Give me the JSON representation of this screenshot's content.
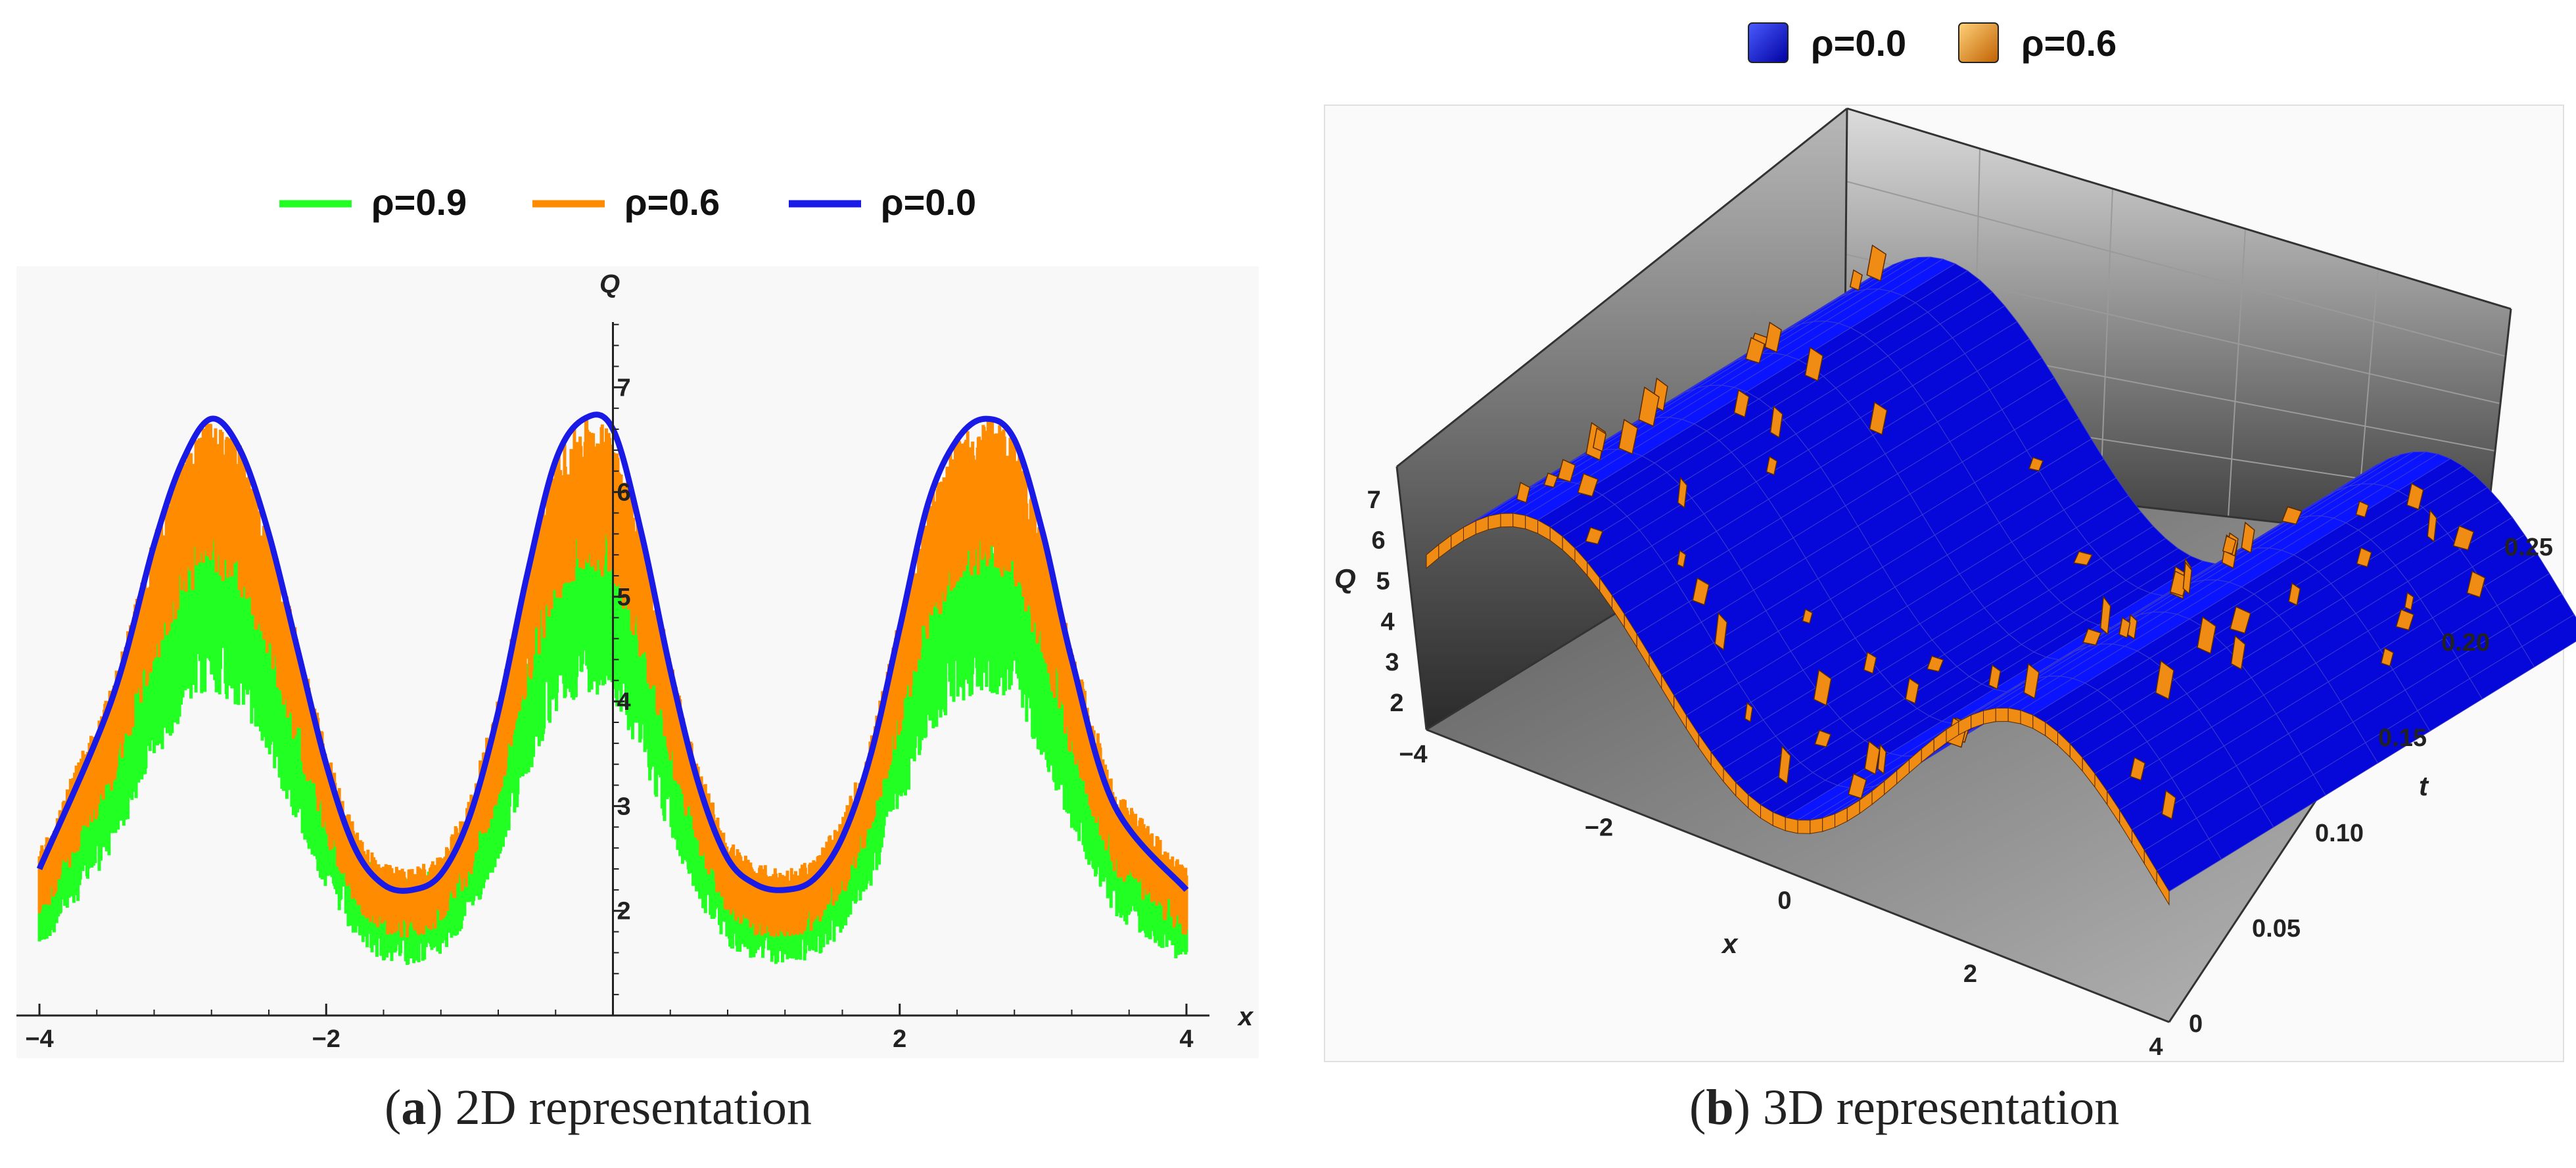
{
  "chart_data": [
    {
      "type": "line",
      "panel": "a",
      "caption_label": "a",
      "caption_text": "2D representation",
      "xlabel": "x",
      "ylabel": "Q",
      "xlim": [
        -4,
        4
      ],
      "ylim": [
        1.0,
        8.0
      ],
      "xticks": [
        -4,
        -2,
        0,
        2,
        4
      ],
      "xtick_labels": [
        "−4",
        "−2",
        "",
        "2",
        "4"
      ],
      "yticks": [
        2,
        3,
        4,
        5,
        6,
        7
      ],
      "ytick_labels": [
        "2",
        "3",
        "4",
        "5",
        "6",
        "7"
      ],
      "legend_position": "top-center",
      "series": [
        {
          "name": "ρ=0.9",
          "color": "#22ff22",
          "style": "noisy",
          "scale": 0.7,
          "noise": 0.55
        },
        {
          "name": "ρ=0.6",
          "color": "#ff8c00",
          "style": "noisy",
          "scale": 0.88,
          "noise": 0.45
        },
        {
          "name": "ρ=0.0",
          "color": "#1a1ae6",
          "style": "smooth",
          "x": [
            -4.0,
            -3.5,
            -3.2,
            -3.0,
            -2.8,
            -2.6,
            -2.4,
            -2.2,
            -2.0,
            -1.8,
            -1.6,
            -1.4,
            -1.2,
            -1.0,
            -0.8,
            -0.6,
            -0.4,
            -0.2,
            0.0,
            0.2,
            0.4,
            0.6,
            0.8,
            1.0,
            1.2,
            1.4,
            1.6,
            1.8,
            2.0,
            2.2,
            2.4,
            2.6,
            2.8,
            3.0,
            3.2,
            3.5,
            4.0
          ],
          "y": [
            2.4,
            4.0,
            5.5,
            6.3,
            6.7,
            6.4,
            5.6,
            4.5,
            3.4,
            2.6,
            2.25,
            2.2,
            2.35,
            2.9,
            3.9,
            5.2,
            6.3,
            6.7,
            6.6,
            5.6,
            4.3,
            3.2,
            2.5,
            2.25,
            2.2,
            2.3,
            2.7,
            3.5,
            4.7,
            5.9,
            6.5,
            6.7,
            6.5,
            5.6,
            4.4,
            3.0,
            2.2
          ]
        }
      ]
    },
    {
      "type": "surface3d",
      "panel": "b",
      "caption_label": "b",
      "caption_text": "3D representation",
      "xlabel": "x",
      "ylabel": "t",
      "zlabel": "Q",
      "xticks": [
        "−4",
        "−2",
        "0",
        "2",
        "4"
      ],
      "yticks": [
        "0",
        "0.05",
        "0.10",
        "0.15",
        "0.20",
        "0.25"
      ],
      "zticks": [
        "2",
        "3",
        "4",
        "5",
        "6",
        "7"
      ],
      "legend_position": "top-center",
      "series": [
        {
          "name": "ρ=0.0",
          "color": "#0a14ff"
        },
        {
          "name": "ρ=0.6",
          "color": "#f08c14"
        }
      ]
    }
  ]
}
